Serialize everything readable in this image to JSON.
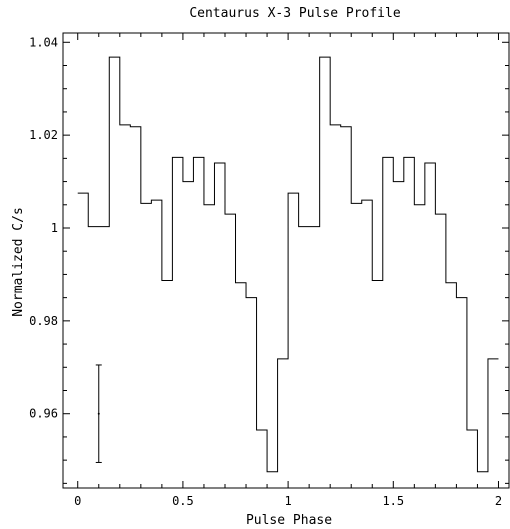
{
  "chart_data": {
    "type": "line",
    "style": "step",
    "title": "Centaurus X-3 Pulse Profile",
    "xlabel": "Pulse Phase",
    "ylabel": "Normalized C/s",
    "xlim": [
      -0.07,
      2.05
    ],
    "ylim": [
      0.944,
      1.042
    ],
    "xticks": [
      0,
      0.5,
      1,
      1.5,
      2
    ],
    "xtick_labels": [
      "0",
      "0.5",
      "1",
      "1.5",
      "2"
    ],
    "yticks": [
      0.96,
      0.98,
      1,
      1.02,
      1.04
    ],
    "ytick_labels": [
      "0.96",
      "0.98",
      "1",
      "1.02",
      "1.04"
    ],
    "grid": false,
    "bin_width": 0.05,
    "series": [
      {
        "x": [
          0.0,
          0.05,
          0.1,
          0.15,
          0.2,
          0.25,
          0.3,
          0.35,
          0.4,
          0.45,
          0.5,
          0.55,
          0.6,
          0.65,
          0.7,
          0.75,
          0.8,
          0.85,
          0.9,
          0.95,
          1.0,
          1.05,
          1.1,
          1.15,
          1.2,
          1.25,
          1.3,
          1.35,
          1.4,
          1.45,
          1.5,
          1.55,
          1.6,
          1.65,
          1.7,
          1.75,
          1.8,
          1.85,
          1.9,
          1.95
        ],
        "values": [
          1.0075,
          1.0003,
          1.0003,
          1.0368,
          1.0222,
          1.0218,
          1.0053,
          1.006,
          0.9887,
          1.0152,
          1.01,
          1.0152,
          1.005,
          1.014,
          1.003,
          0.9882,
          0.985,
          0.9565,
          0.9475,
          0.9718,
          1.0075,
          1.0003,
          1.0003,
          1.0368,
          1.0222,
          1.0218,
          1.0053,
          1.006,
          0.9887,
          1.0152,
          1.01,
          1.0152,
          1.005,
          1.014,
          1.003,
          0.9882,
          0.985,
          0.9565,
          0.9475,
          0.9718
        ]
      }
    ],
    "error_bar": {
      "x": 0.1,
      "center": 0.96,
      "low": 0.9495,
      "high": 0.9705
    }
  }
}
